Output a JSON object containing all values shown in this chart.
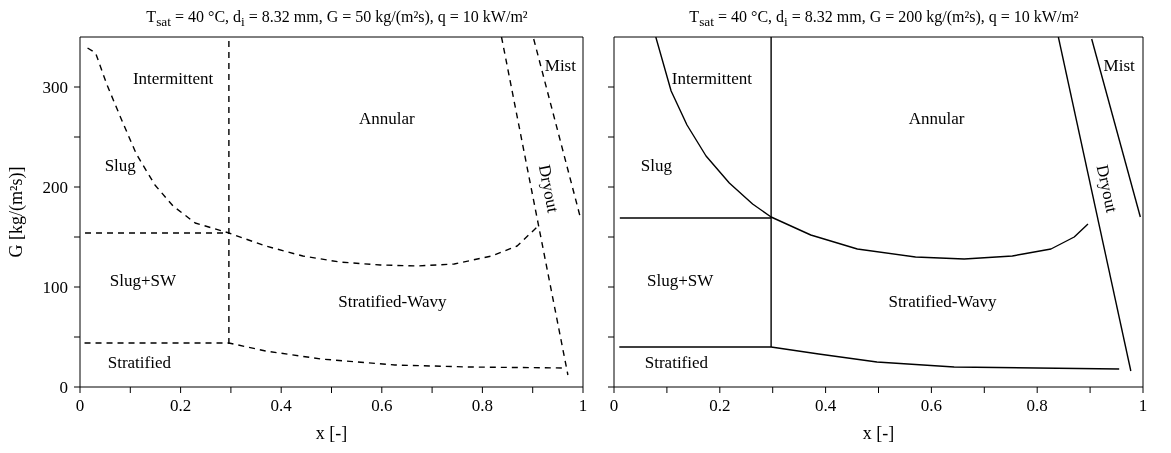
{
  "chart_data": [
    {
      "type": "line",
      "title": "T$_{sat}$ = 40 °C, d$_{i}$ = 8.32 mm, G = 50 kg/(m²s), q = 10 kW/m²",
      "xlabel": "x [-]",
      "ylabel": "G [kg/(m²s)]",
      "xlim": [
        0,
        1
      ],
      "xticks": [
        0,
        {
          "value": 0.1,
          "label": null
        },
        0.2,
        {
          "value": 0.3,
          "label": null
        },
        0.4,
        {
          "value": 0.5,
          "label": null
        },
        0.6,
        {
          "value": 0.7,
          "label": null
        },
        0.8,
        {
          "value": 0.9,
          "label": null
        },
        1
      ],
      "ylim": [
        0,
        350
      ],
      "yticks": [
        0,
        {
          "value": 50,
          "label": null
        },
        100,
        {
          "value": 150,
          "label": null
        },
        200,
        {
          "value": 250,
          "label": null
        },
        300
      ],
      "grid": false,
      "legend": false,
      "marker": "none",
      "line_style": "dashed",
      "series": [
        {
          "color": "#000000",
          "x": [
            0.015,
            0.031,
            0.053,
            0.082,
            0.112,
            0.149,
            0.185,
            0.229,
            0.296,
            0.369,
            0.443,
            0.516,
            0.597,
            0.671,
            0.744,
            0.818,
            0.869,
            0.913
          ],
          "values": [
            339,
            334,
            303,
            268,
            233,
            202,
            181,
            164,
            154,
            141,
            131,
            125,
            122,
            121,
            123,
            131,
            141,
            162
          ]
        },
        {
          "color": "#000000",
          "x": [
            0.01,
            0.296
          ],
          "values": [
            154,
            154
          ]
        },
        {
          "color": "#000000",
          "x": [
            0.296,
            0.296
          ],
          "values": [
            43,
            350
          ]
        },
        {
          "color": "#000000",
          "x": [
            0.009,
            0.296,
            0.369,
            0.479,
            0.626,
            0.774,
            0.965
          ],
          "values": [
            44,
            44,
            36,
            28,
            22,
            20,
            19
          ]
        },
        {
          "color": "#000000",
          "x": [
            0.838,
            0.97
          ],
          "values": [
            350,
            12
          ]
        },
        {
          "color": "#000000",
          "x": [
            0.902,
            0.995
          ],
          "values": [
            348,
            169
          ]
        }
      ],
      "annotations": [
        "Intermittent",
        "Annular",
        "Slug",
        "Slug+SW",
        "Stratified-Wavy",
        "Stratified",
        "Mist",
        "Dryout"
      ]
    },
    {
      "type": "line",
      "title": "T$_{sat}$ = 40 °C, d$_{i}$ = 8.32 mm, G = 200 kg/(m²s), q = 10 kW/m²",
      "xlabel": "x [-]",
      "xlim": [
        0,
        1
      ],
      "xticks": [
        0,
        {
          "value": 0.1,
          "label": null
        },
        0.2,
        {
          "value": 0.3,
          "label": null
        },
        0.4,
        {
          "value": 0.5,
          "label": null
        },
        0.6,
        {
          "value": 0.7,
          "label": null
        },
        0.8,
        {
          "value": 0.9,
          "label": null
        },
        1
      ],
      "ylim": [
        0,
        350
      ],
      "yticks": [
        0,
        {
          "value": 50,
          "label": null
        },
        100,
        {
          "value": 150,
          "label": null
        },
        200,
        {
          "value": 250,
          "label": null
        },
        300
      ],
      "tick_labels": "x",
      "grid": false,
      "legend": false,
      "marker": "none",
      "line_style": "solid",
      "series": [
        {
          "color": "#000000",
          "x": [
            0.079,
            0.108,
            0.138,
            0.174,
            0.218,
            0.262,
            0.297,
            0.372,
            0.46,
            0.57,
            0.662,
            0.753,
            0.826,
            0.87,
            0.896
          ],
          "values": [
            350,
            296,
            262,
            231,
            204,
            183,
            170,
            152,
            138,
            130,
            128,
            131,
            138,
            150,
            163
          ]
        },
        {
          "color": "#000000",
          "x": [
            0.011,
            0.297
          ],
          "values": [
            169,
            169
          ]
        },
        {
          "color": "#000000",
          "x": [
            0.297,
            0.297
          ],
          "values": [
            40,
            350
          ]
        },
        {
          "color": "#000000",
          "x": [
            0.01,
            0.297,
            0.387,
            0.497,
            0.643,
            0.955
          ],
          "values": [
            40,
            40,
            33,
            25,
            20,
            18
          ]
        },
        {
          "color": "#000000",
          "x": [
            0.84,
            0.977
          ],
          "values": [
            350,
            16
          ]
        },
        {
          "color": "#000000",
          "x": [
            0.903,
            0.995
          ],
          "values": [
            348,
            170
          ]
        }
      ],
      "annotations": [
        "Intermittent",
        "Annular",
        "Slug",
        "Slug+SW",
        "Stratified-Wavy",
        "Stratified",
        "Mist",
        "Dryout"
      ]
    }
  ]
}
